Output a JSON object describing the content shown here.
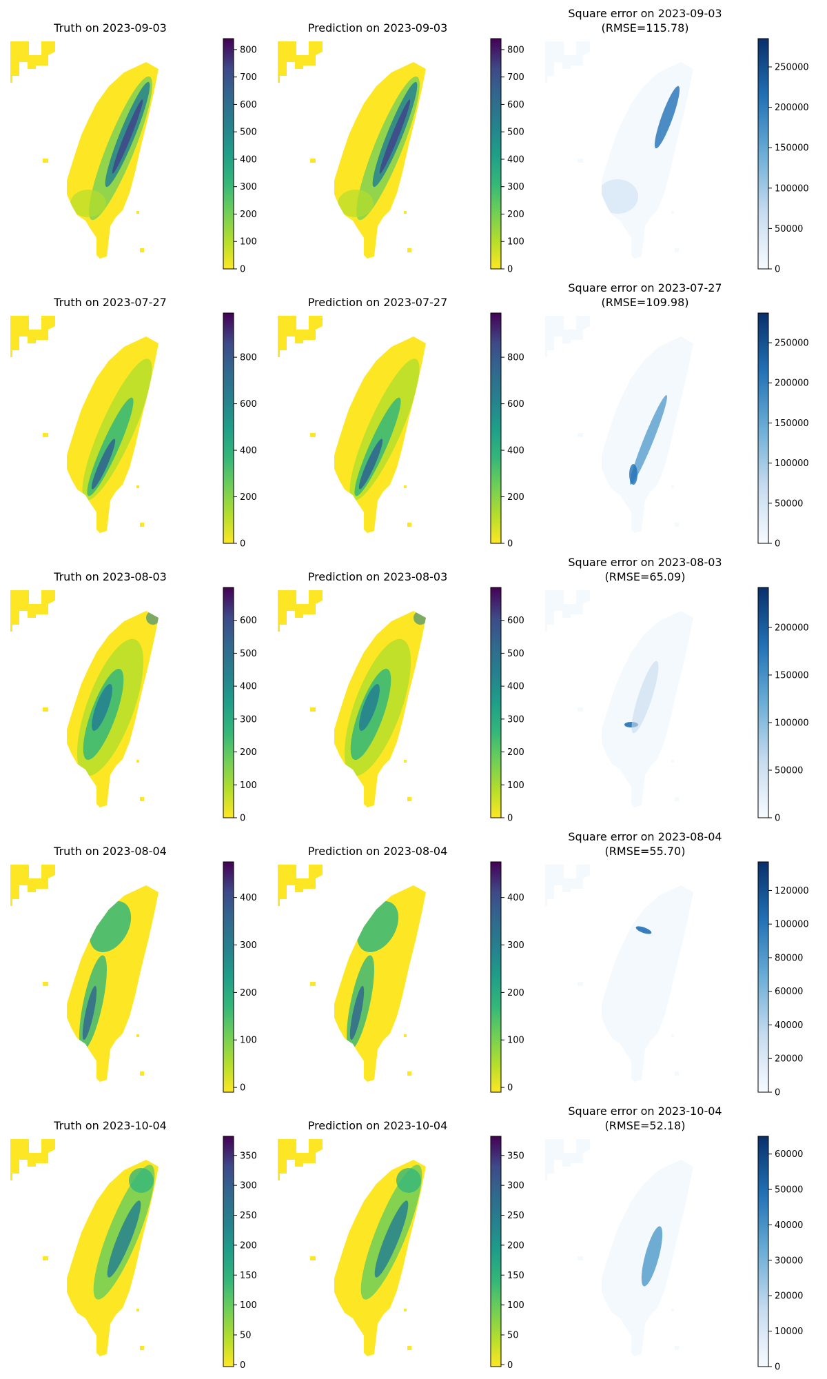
{
  "chart_data": [
    {
      "row": 0,
      "date": "2023-09-03",
      "truth": {
        "type": "heatmap",
        "title": "Truth on 2023-09-03",
        "colormap": "viridis_r",
        "vmin": 0,
        "vmax": 840,
        "colorbar_ticks": [
          0,
          100,
          200,
          300,
          400,
          500,
          600,
          700,
          800
        ]
      },
      "prediction": {
        "type": "heatmap",
        "title": "Prediction on 2023-09-03",
        "colormap": "viridis_r",
        "vmin": 0,
        "vmax": 840,
        "colorbar_ticks": [
          0,
          100,
          200,
          300,
          400,
          500,
          600,
          700,
          800
        ]
      },
      "error": {
        "type": "heatmap",
        "title": "Square error on 2023-09-03",
        "subtitle": "(RMSE=115.78)",
        "rmse": 115.78,
        "colormap": "Blues",
        "vmin": 0,
        "vmax": 285000,
        "colorbar_ticks": [
          0,
          50000,
          100000,
          150000,
          200000,
          250000
        ]
      }
    },
    {
      "row": 1,
      "date": "2023-07-27",
      "truth": {
        "type": "heatmap",
        "title": "Truth on 2023-07-27",
        "colormap": "viridis_r",
        "vmin": 0,
        "vmax": 990,
        "colorbar_ticks": [
          0,
          200,
          400,
          600,
          800
        ]
      },
      "prediction": {
        "type": "heatmap",
        "title": "Prediction on 2023-07-27",
        "colormap": "viridis_r",
        "vmin": 0,
        "vmax": 990,
        "colorbar_ticks": [
          0,
          200,
          400,
          600,
          800
        ]
      },
      "error": {
        "type": "heatmap",
        "title": "Square error on 2023-07-27",
        "subtitle": "(RMSE=109.98)",
        "rmse": 109.98,
        "colormap": "Blues",
        "vmin": 0,
        "vmax": 287000,
        "colorbar_ticks": [
          0,
          50000,
          100000,
          150000,
          200000,
          250000
        ]
      }
    },
    {
      "row": 2,
      "date": "2023-08-03",
      "truth": {
        "type": "heatmap",
        "title": "Truth on 2023-08-03",
        "colormap": "viridis_r",
        "vmin": 0,
        "vmax": 700,
        "colorbar_ticks": [
          0,
          100,
          200,
          300,
          400,
          500,
          600
        ]
      },
      "prediction": {
        "type": "heatmap",
        "title": "Prediction on 2023-08-03",
        "colormap": "viridis_r",
        "vmin": 0,
        "vmax": 700,
        "colorbar_ticks": [
          0,
          100,
          200,
          300,
          400,
          500,
          600
        ]
      },
      "error": {
        "type": "heatmap",
        "title": "Square error on 2023-08-03",
        "subtitle": "(RMSE=65.09)",
        "rmse": 65.09,
        "colormap": "Blues",
        "vmin": 0,
        "vmax": 242000,
        "colorbar_ticks": [
          0,
          50000,
          100000,
          150000,
          200000
        ]
      }
    },
    {
      "row": 3,
      "date": "2023-08-04",
      "truth": {
        "type": "heatmap",
        "title": "Truth on 2023-08-04",
        "colormap": "viridis_r",
        "vmin": -10,
        "vmax": 475,
        "colorbar_ticks": [
          0,
          100,
          200,
          300,
          400
        ]
      },
      "prediction": {
        "type": "heatmap",
        "title": "Prediction on 2023-08-04",
        "colormap": "viridis_r",
        "vmin": -10,
        "vmax": 475,
        "colorbar_ticks": [
          0,
          100,
          200,
          300,
          400
        ]
      },
      "error": {
        "type": "heatmap",
        "title": "Square error on 2023-08-04",
        "subtitle": "(RMSE=55.70)",
        "rmse": 55.7,
        "colormap": "Blues",
        "vmin": 0,
        "vmax": 137000,
        "colorbar_ticks": [
          0,
          20000,
          40000,
          60000,
          80000,
          100000,
          120000
        ]
      }
    },
    {
      "row": 4,
      "date": "2023-10-04",
      "truth": {
        "type": "heatmap",
        "title": "Truth on 2023-10-04",
        "colormap": "viridis_r",
        "vmin": -3,
        "vmax": 382,
        "colorbar_ticks": [
          0,
          50,
          100,
          150,
          200,
          250,
          300,
          350
        ]
      },
      "prediction": {
        "type": "heatmap",
        "title": "Prediction on 2023-10-04",
        "colormap": "viridis_r",
        "vmin": -3,
        "vmax": 382,
        "colorbar_ticks": [
          0,
          50,
          100,
          150,
          200,
          250,
          300,
          350
        ]
      },
      "error": {
        "type": "heatmap",
        "title": "Square error on 2023-10-04",
        "subtitle": "(RMSE=52.18)",
        "rmse": 52.18,
        "colormap": "Blues",
        "vmin": 0,
        "vmax": 65000,
        "colorbar_ticks": [
          0,
          10000,
          20000,
          30000,
          40000,
          50000,
          60000
        ]
      }
    }
  ]
}
